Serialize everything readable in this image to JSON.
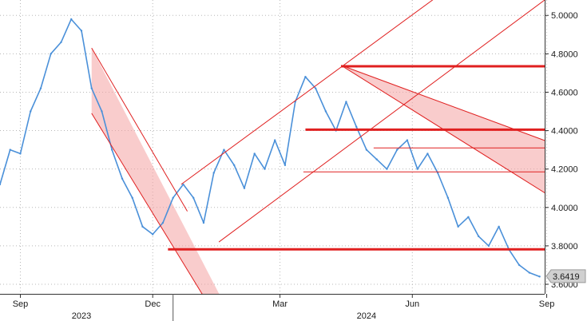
{
  "chart_data": {
    "type": "line",
    "title": "",
    "xlabel": "",
    "ylabel": "",
    "ylim": [
      3.55,
      5.08
    ],
    "xlim": [
      0,
      53.5
    ],
    "grid": true,
    "legend": "none",
    "y_ticks": [
      "3.6000",
      "3.8000",
      "4.0000",
      "4.2000",
      "4.4000",
      "4.6000",
      "4.8000",
      "5.0000"
    ],
    "y_tick_values": [
      3.6,
      3.8,
      4.0,
      4.2,
      4.4,
      4.6,
      4.8,
      5.0
    ],
    "x_ticks": [
      {
        "label": "Sep",
        "x": 2
      },
      {
        "label": "Dec",
        "x": 15
      },
      {
        "label": "Mar",
        "x": 27.5
      },
      {
        "label": "Jun",
        "x": 40.5
      },
      {
        "label": "Sep",
        "x": 53.7
      }
    ],
    "year_labels": [
      {
        "label": "2023",
        "x": 8
      },
      {
        "label": "2024",
        "x": 36
      }
    ],
    "year_separator_x": 17,
    "last_value": {
      "label": "3.6419",
      "y": 3.6419
    },
    "series": [
      {
        "color": "#4a90d9",
        "x": [
          0,
          1,
          2,
          3,
          4,
          5,
          6,
          7,
          8,
          9,
          10,
          11,
          12,
          13,
          14,
          15,
          16,
          17,
          18,
          19,
          20,
          21,
          22,
          23,
          24,
          25,
          26,
          27,
          28,
          29,
          30,
          31,
          32,
          33,
          34,
          35,
          36,
          37,
          38,
          39,
          40,
          41,
          42,
          43,
          44,
          45,
          46,
          47,
          48,
          49,
          50,
          51,
          52,
          53
        ],
        "y": [
          4.12,
          4.3,
          4.28,
          4.5,
          4.62,
          4.8,
          4.86,
          4.98,
          4.92,
          4.62,
          4.5,
          4.3,
          4.15,
          4.05,
          3.9,
          3.86,
          3.92,
          4.05,
          4.12,
          4.05,
          3.92,
          4.18,
          4.3,
          4.22,
          4.1,
          4.28,
          4.2,
          4.35,
          4.22,
          4.55,
          4.68,
          4.62,
          4.5,
          4.4,
          4.55,
          4.42,
          4.3,
          4.25,
          4.2,
          4.3,
          4.35,
          4.2,
          4.28,
          4.18,
          4.05,
          3.9,
          3.95,
          3.85,
          3.8,
          3.9,
          3.78,
          3.7,
          3.66,
          3.64
        ]
      }
    ],
    "trend_lines": [
      {
        "color": "#e02020",
        "width": 1,
        "points": [
          [
            9,
            4.83
          ],
          [
            18.4,
            3.98
          ]
        ]
      },
      {
        "color": "#e02020",
        "width": 1,
        "points": [
          [
            9,
            4.49
          ],
          [
            21,
            3.45
          ]
        ]
      },
      {
        "color": "#e02020",
        "width": 1,
        "points": [
          [
            17.8,
            4.12
          ],
          [
            43,
            5.1
          ]
        ]
      },
      {
        "color": "#e02020",
        "width": 1,
        "points": [
          [
            21.5,
            3.82
          ],
          [
            53.5,
            5.08
          ]
        ]
      },
      {
        "color": "#e02020",
        "width": 1,
        "points": [
          [
            33.5,
            4.74
          ],
          [
            57,
            4.28
          ]
        ]
      },
      {
        "color": "#e02020",
        "width": 1,
        "points": [
          [
            33.5,
            4.74
          ],
          [
            57,
            3.96
          ]
        ]
      },
      {
        "color": "#e02020",
        "width": 3,
        "points": [
          [
            33.5,
            4.735
          ],
          [
            57,
            4.735
          ]
        ]
      },
      {
        "color": "#e02020",
        "width": 3,
        "points": [
          [
            30,
            4.405
          ],
          [
            57,
            4.405
          ]
        ]
      },
      {
        "color": "#e02020",
        "width": 3,
        "points": [
          [
            16.5,
            3.782
          ],
          [
            57,
            3.782
          ]
        ]
      },
      {
        "color": "#e02020",
        "width": 1,
        "points": [
          [
            36.7,
            4.31
          ],
          [
            57,
            4.31
          ]
        ]
      },
      {
        "color": "#e02020",
        "width": 1,
        "points": [
          [
            29.8,
            4.185
          ],
          [
            57,
            4.185
          ]
        ]
      }
    ],
    "shaded_channels": [
      {
        "color": "#f4a3a3",
        "points": [
          [
            9,
            4.83
          ],
          [
            22.5,
            3.45
          ],
          [
            21,
            3.45
          ],
          [
            9,
            4.49
          ]
        ]
      },
      {
        "color": "#f4a3a3",
        "points": [
          [
            33.5,
            4.74
          ],
          [
            57,
            4.28
          ],
          [
            57,
            3.96
          ]
        ]
      }
    ]
  }
}
